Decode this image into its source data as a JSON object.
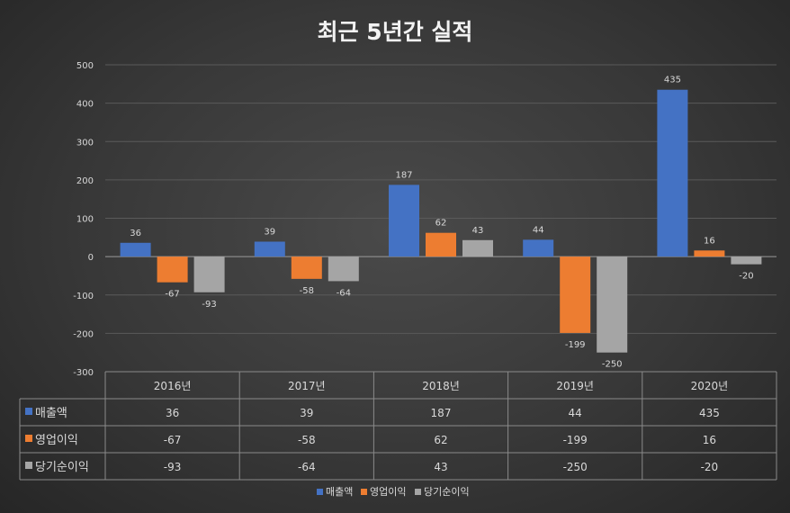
{
  "chart_data": {
    "type": "bar",
    "title": "최근 5년간 실적",
    "categories": [
      "2016년",
      "2017년",
      "2018년",
      "2019년",
      "2020년"
    ],
    "series": [
      {
        "name": "매출액",
        "values": [
          36,
          39,
          187,
          44,
          435
        ],
        "color": "#4472c4"
      },
      {
        "name": "영업이익",
        "values": [
          -67,
          -58,
          62,
          -199,
          16
        ],
        "color": "#ed7d31"
      },
      {
        "name": "당기순이익",
        "values": [
          -93,
          -64,
          43,
          -250,
          -20
        ],
        "color": "#a5a5a5"
      }
    ],
    "ylim": [
      -300,
      500
    ],
    "yticks": [
      500,
      400,
      300,
      200,
      100,
      0,
      -100,
      -200,
      -300
    ],
    "grid": true,
    "data_table": true,
    "legend": "bottom"
  }
}
